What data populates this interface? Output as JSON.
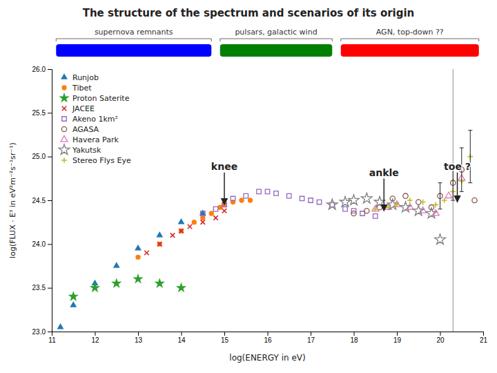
{
  "chart_data": {
    "type": "scatter",
    "title": "The structure of the spectrum and scenarios of its origin",
    "xlabel": "log(ENERGY in eV)",
    "ylabel": "log(FLUX · E³ in eV²m⁻²s⁻¹sr⁻¹)",
    "xlim": [
      11,
      21
    ],
    "ylim": [
      23,
      26
    ],
    "xticks": [
      11,
      12,
      13,
      14,
      15,
      16,
      17,
      18,
      19,
      20,
      21
    ],
    "yticks": [
      {
        "value": 23,
        "label": "23.0"
      },
      23.5,
      {
        "value": 24,
        "label": "24.0"
      },
      24.5,
      {
        "value": 25,
        "label": "25.0"
      },
      25.5,
      {
        "value": 26,
        "label": "26.0"
      }
    ],
    "grid": false,
    "legend": "upper left",
    "series": [
      {
        "name": "Runjob",
        "marker": "triangle",
        "x": [
          11.2,
          11.5,
          12.0,
          12.5,
          13.0,
          13.5,
          14.0,
          14.5
        ],
        "values": [
          23.05,
          23.3,
          23.55,
          23.75,
          23.95,
          24.1,
          24.25,
          24.35
        ]
      },
      {
        "name": "Tibet",
        "marker": "circle",
        "x": [
          13.0,
          13.5,
          14.0,
          14.3,
          14.5,
          14.7,
          14.9,
          15.0,
          15.2,
          15.4,
          15.6
        ],
        "values": [
          23.85,
          24.0,
          24.15,
          24.25,
          24.3,
          24.35,
          24.42,
          24.45,
          24.48,
          24.5,
          24.5
        ]
      },
      {
        "name": "Proton Saterite",
        "marker": "star",
        "x": [
          11.5,
          12.0,
          12.5,
          13.0,
          13.5,
          14.0
        ],
        "values": [
          23.4,
          23.5,
          23.55,
          23.6,
          23.55,
          23.5
        ]
      },
      {
        "name": "JACEE",
        "marker": "x",
        "x": [
          13.2,
          13.5,
          13.8,
          14.0,
          14.2,
          14.5,
          14.8,
          15.0
        ],
        "values": [
          23.9,
          24.0,
          24.1,
          24.15,
          24.2,
          24.25,
          24.3,
          24.38
        ]
      },
      {
        "name": "Akeno 1km²",
        "marker": "square-open",
        "x": [
          14.5,
          14.8,
          15.0,
          15.2,
          15.5,
          15.8,
          16.0,
          16.2,
          16.5,
          16.8,
          17.0,
          17.2,
          17.5,
          17.8,
          18.0,
          18.2,
          18.5
        ],
        "values": [
          24.35,
          24.4,
          24.45,
          24.52,
          24.55,
          24.6,
          24.6,
          24.58,
          24.55,
          24.52,
          24.5,
          24.48,
          24.45,
          24.4,
          24.38,
          24.35,
          24.32
        ]
      },
      {
        "name": "AGASA",
        "marker": "circle-open",
        "x": [
          18.0,
          18.3,
          18.6,
          18.9,
          19.2,
          19.5,
          19.8,
          20.0,
          20.3,
          20.5,
          20.8
        ],
        "values": [
          24.35,
          24.38,
          24.42,
          24.52,
          24.55,
          24.48,
          24.42,
          24.55,
          24.7,
          24.85,
          24.5
        ]
      },
      {
        "name": "Havera Park",
        "marker": "triangle-open",
        "x": [
          18.5,
          18.8,
          19.0,
          19.3,
          19.6,
          19.9,
          20.2,
          20.5
        ],
        "values": [
          24.4,
          24.42,
          24.45,
          24.42,
          24.38,
          24.35,
          24.55,
          24.75
        ]
      },
      {
        "name": "Yakutsk",
        "marker": "star-open",
        "x": [
          17.5,
          17.8,
          18.0,
          18.3,
          18.6,
          18.9,
          19.2,
          19.5,
          19.8,
          20.0
        ],
        "values": [
          24.45,
          24.48,
          24.5,
          24.52,
          24.48,
          24.45,
          24.42,
          24.38,
          24.35,
          24.05
        ]
      },
      {
        "name": "Stereo Flys Eye",
        "marker": "plus",
        "x": [
          18.5,
          18.8,
          19.0,
          19.3,
          19.6,
          19.9,
          20.1,
          20.3,
          20.5,
          20.7
        ],
        "values": [
          24.4,
          24.42,
          24.45,
          24.5,
          24.48,
          24.45,
          24.5,
          24.6,
          24.72,
          25.0
        ]
      }
    ],
    "error_bars": {
      "x": [
        20.0,
        20.3,
        20.5,
        20.7
      ],
      "y": [
        24.55,
        24.7,
        24.85,
        25.0
      ],
      "yerr": [
        0.15,
        0.2,
        0.25,
        0.3
      ]
    },
    "vline": 20.3,
    "annotations": [
      {
        "text": "knee",
        "x": 15.0,
        "y": 24.85,
        "arrow_to": [
          15.0,
          24.45
        ]
      },
      {
        "text": "ankle",
        "x": 18.7,
        "y": 24.78,
        "arrow_to": [
          18.7,
          24.38
        ]
      },
      {
        "text": "toe ?",
        "x": 20.4,
        "y": 24.85,
        "arrow_to": [
          20.4,
          24.48
        ]
      }
    ],
    "source_bands": [
      {
        "label": "supernova remnants",
        "color": "blue",
        "x": [
          11.1,
          14.7
        ]
      },
      {
        "label": "pulsars, galactic wind",
        "color": "green",
        "x": [
          14.9,
          17.5
        ]
      },
      {
        "label": "AGN, top-down ??",
        "color": "red",
        "x": [
          17.7,
          20.9
        ]
      }
    ]
  }
}
